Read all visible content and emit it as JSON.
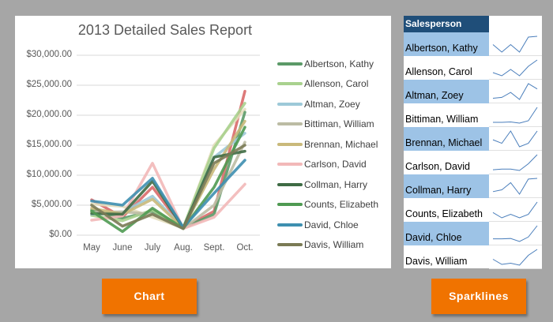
{
  "chart_data": {
    "type": "line",
    "title": "2013 Detailed Sales Report",
    "xlabel": "",
    "ylabel": "",
    "categories": [
      "May",
      "June",
      "July",
      "Aug.",
      "Sept.",
      "Oct."
    ],
    "yticks": [
      "$0.00",
      "$5,000.00",
      "$10,000.00",
      "$15,000.00",
      "$20,000.00",
      "$25,000.00",
      "$30,000.00"
    ],
    "ylim": [
      0,
      30000
    ],
    "grid": true,
    "legend_position": "right",
    "series": [
      {
        "name": "Albertson, Kathy",
        "color": "#5b9a68",
        "values": [
          4200,
          2800,
          4000,
          1200,
          3500,
          20500
        ]
      },
      {
        "name": "Allenson, Carol",
        "color": "#a9d18e",
        "values": [
          3300,
          2400,
          4200,
          1300,
          14500,
          22000
        ]
      },
      {
        "name": "Altman, Zoey",
        "color": "#9dc9d8",
        "values": [
          3500,
          3800,
          6500,
          1200,
          13000,
          17000
        ]
      },
      {
        "name": "Bittiman, William",
        "color": "#bcbca4",
        "values": [
          3800,
          3900,
          3500,
          1100,
          5000,
          15500
        ]
      },
      {
        "name": "Brennan, Michael",
        "color": "#c9b97a",
        "values": [
          4500,
          3500,
          6000,
          1200,
          11000,
          19000
        ]
      },
      {
        "name": "Carlson, David",
        "color": "#f2b8b8",
        "values": [
          2500,
          3200,
          12000,
          1100,
          3000,
          8500
        ]
      },
      {
        "name": "Collman, Harry",
        "color": "#3e6b44",
        "values": [
          3600,
          3500,
          9000,
          1200,
          13000,
          14000
        ]
      },
      {
        "name": "Counts, Elizabeth",
        "color": "#4f9a52",
        "values": [
          4000,
          600,
          4500,
          1100,
          8000,
          18000
        ]
      },
      {
        "name": "David, Chloe",
        "color": "#3e8fb0",
        "values": [
          5700,
          5000,
          9500,
          1300,
          7000,
          12500
        ]
      },
      {
        "name": "Davis, William",
        "color": "#7a7a55",
        "values": [
          5000,
          1500,
          3500,
          1100,
          12000,
          15000
        ]
      }
    ],
    "extra_series_visible": [
      {
        "name": "(unlisted, red)",
        "color": "#d96a6a",
        "values": [
          5900,
          3000,
          8000,
          1200,
          4000,
          24000
        ]
      },
      {
        "name": "(unlisted, cream)",
        "color": "#e3ddbd",
        "values": [
          5200,
          4800,
          3000,
          1200,
          15000,
          21000
        ]
      }
    ]
  },
  "table": {
    "header": "Salesperson",
    "rows": [
      {
        "name": "Albertson, Kathy",
        "shaded": true,
        "spark": [
          3,
          1,
          3,
          1,
          5,
          5.2
        ]
      },
      {
        "name": "Allenson, Carol",
        "shaded": false,
        "spark": [
          2,
          1,
          3,
          1,
          4,
          6
        ]
      },
      {
        "name": "Altman, Zoey",
        "shaded": true,
        "spark": [
          1,
          1.3,
          3,
          0.6,
          6,
          4.2
        ]
      },
      {
        "name": "Bittiman, William",
        "shaded": false,
        "spark": [
          1.2,
          1.2,
          1.3,
          1,
          1.6,
          5
        ]
      },
      {
        "name": "Brennan, Michael",
        "shaded": true,
        "spark": [
          3.5,
          2.5,
          6,
          1.5,
          2.5,
          6
        ]
      },
      {
        "name": "Carlson, David",
        "shaded": false,
        "spark": [
          1,
          1.2,
          1.2,
          0.8,
          2.8,
          5.5
        ]
      },
      {
        "name": "Collman, Harry",
        "shaded": true,
        "spark": [
          1.5,
          2,
          4,
          0.8,
          5,
          5.2
        ]
      },
      {
        "name": "Counts, Elizabeth",
        "shaded": false,
        "spark": [
          2.5,
          1,
          2,
          1,
          2,
          5.5
        ]
      },
      {
        "name": "David, Chloe",
        "shaded": true,
        "spark": [
          2,
          2,
          2.1,
          1.3,
          2.5,
          5.5
        ]
      },
      {
        "name": "Davis, William",
        "shaded": false,
        "spark": [
          2.5,
          1.2,
          1.5,
          1,
          3.5,
          5
        ]
      }
    ]
  },
  "buttons": {
    "chart": "Chart",
    "sparklines": "Sparklines"
  },
  "colors": {
    "background": "#a6a6a6",
    "button": "#f07300",
    "header": "#1f4e79",
    "row_shade": "#9dc3e6",
    "sparkline": "#4a7ebb"
  }
}
